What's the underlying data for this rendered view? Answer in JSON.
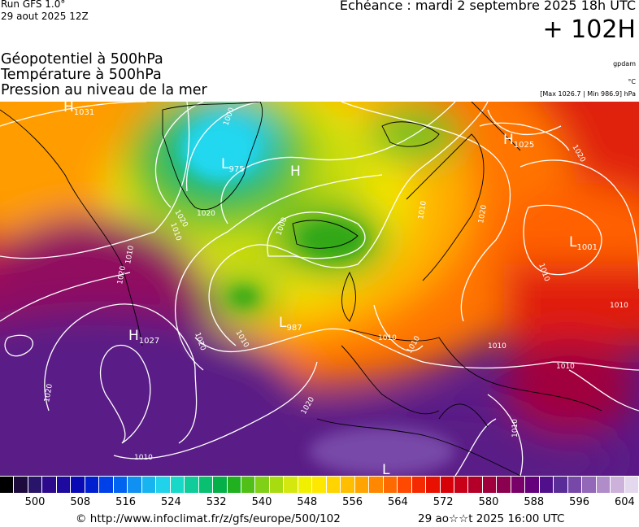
{
  "header": {
    "run_line1": "Run GFS 1.0°",
    "run_line2": "29 aout 2025 12Z",
    "echeance": "Echéance : mardi 2 septembre 2025 18h UTC",
    "lead_time": "+ 102H"
  },
  "products": [
    {
      "label": "Géopotentiel à 500hPa",
      "unit": "gpdam"
    },
    {
      "label": "Température à 500hPa",
      "unit": "°C"
    },
    {
      "label": "Pression au niveau de la mer",
      "unit": "[Max 1026.7 | Min 986.9] hPa"
    }
  ],
  "pressure_centers": [
    {
      "type": "H",
      "value": "1031"
    },
    {
      "type": "L",
      "value": "975"
    },
    {
      "type": "H",
      "value": ""
    },
    {
      "type": "H",
      "value": "1025"
    },
    {
      "type": "L",
      "value": "1001"
    },
    {
      "type": "L",
      "value": "987"
    },
    {
      "type": "H",
      "value": "1027"
    },
    {
      "type": "L",
      "value": ""
    }
  ],
  "isobar_labels": [
    "1000",
    "1020",
    "1010",
    "1020",
    "1000",
    "1010",
    "1020",
    "1010",
    "1020",
    "1010",
    "1010",
    "1010",
    "1010",
    "1020",
    "1010",
    "1020",
    "1020",
    "1010",
    "1010",
    "1010",
    "1010",
    "1020"
  ],
  "scale": {
    "colors": [
      "#000000",
      "#1e0a3c",
      "#281468",
      "#2d0a8c",
      "#1e0a9e",
      "#0a0ab4",
      "#0020d0",
      "#0040e8",
      "#0064f0",
      "#1090f0",
      "#18b4f0",
      "#20d2ea",
      "#18d8c8",
      "#10cc9a",
      "#08c070",
      "#06b048",
      "#20b020",
      "#50c018",
      "#80d018",
      "#a8dc10",
      "#d4e810",
      "#f0f000",
      "#ffe800",
      "#ffd400",
      "#ffbe00",
      "#ffa400",
      "#ff8800",
      "#ff6a00",
      "#ff4800",
      "#f52a00",
      "#e81000",
      "#d80008",
      "#c80018",
      "#b40028",
      "#a0003c",
      "#8c0050",
      "#780068",
      "#64007c",
      "#50108c",
      "#5a2c98",
      "#7848a8",
      "#9468b8",
      "#b08cc8",
      "#ccb2da",
      "#e4d8ee"
    ],
    "ticks": [
      "500",
      "508",
      "516",
      "524",
      "532",
      "540",
      "548",
      "556",
      "564",
      "572",
      "580",
      "588",
      "596",
      "604"
    ]
  },
  "footer": {
    "url": "© http://www.infoclimat.fr/z/gfs/europe/500/102",
    "timestamp": "29 ao☆☆t 2025 16:00 UTC"
  }
}
